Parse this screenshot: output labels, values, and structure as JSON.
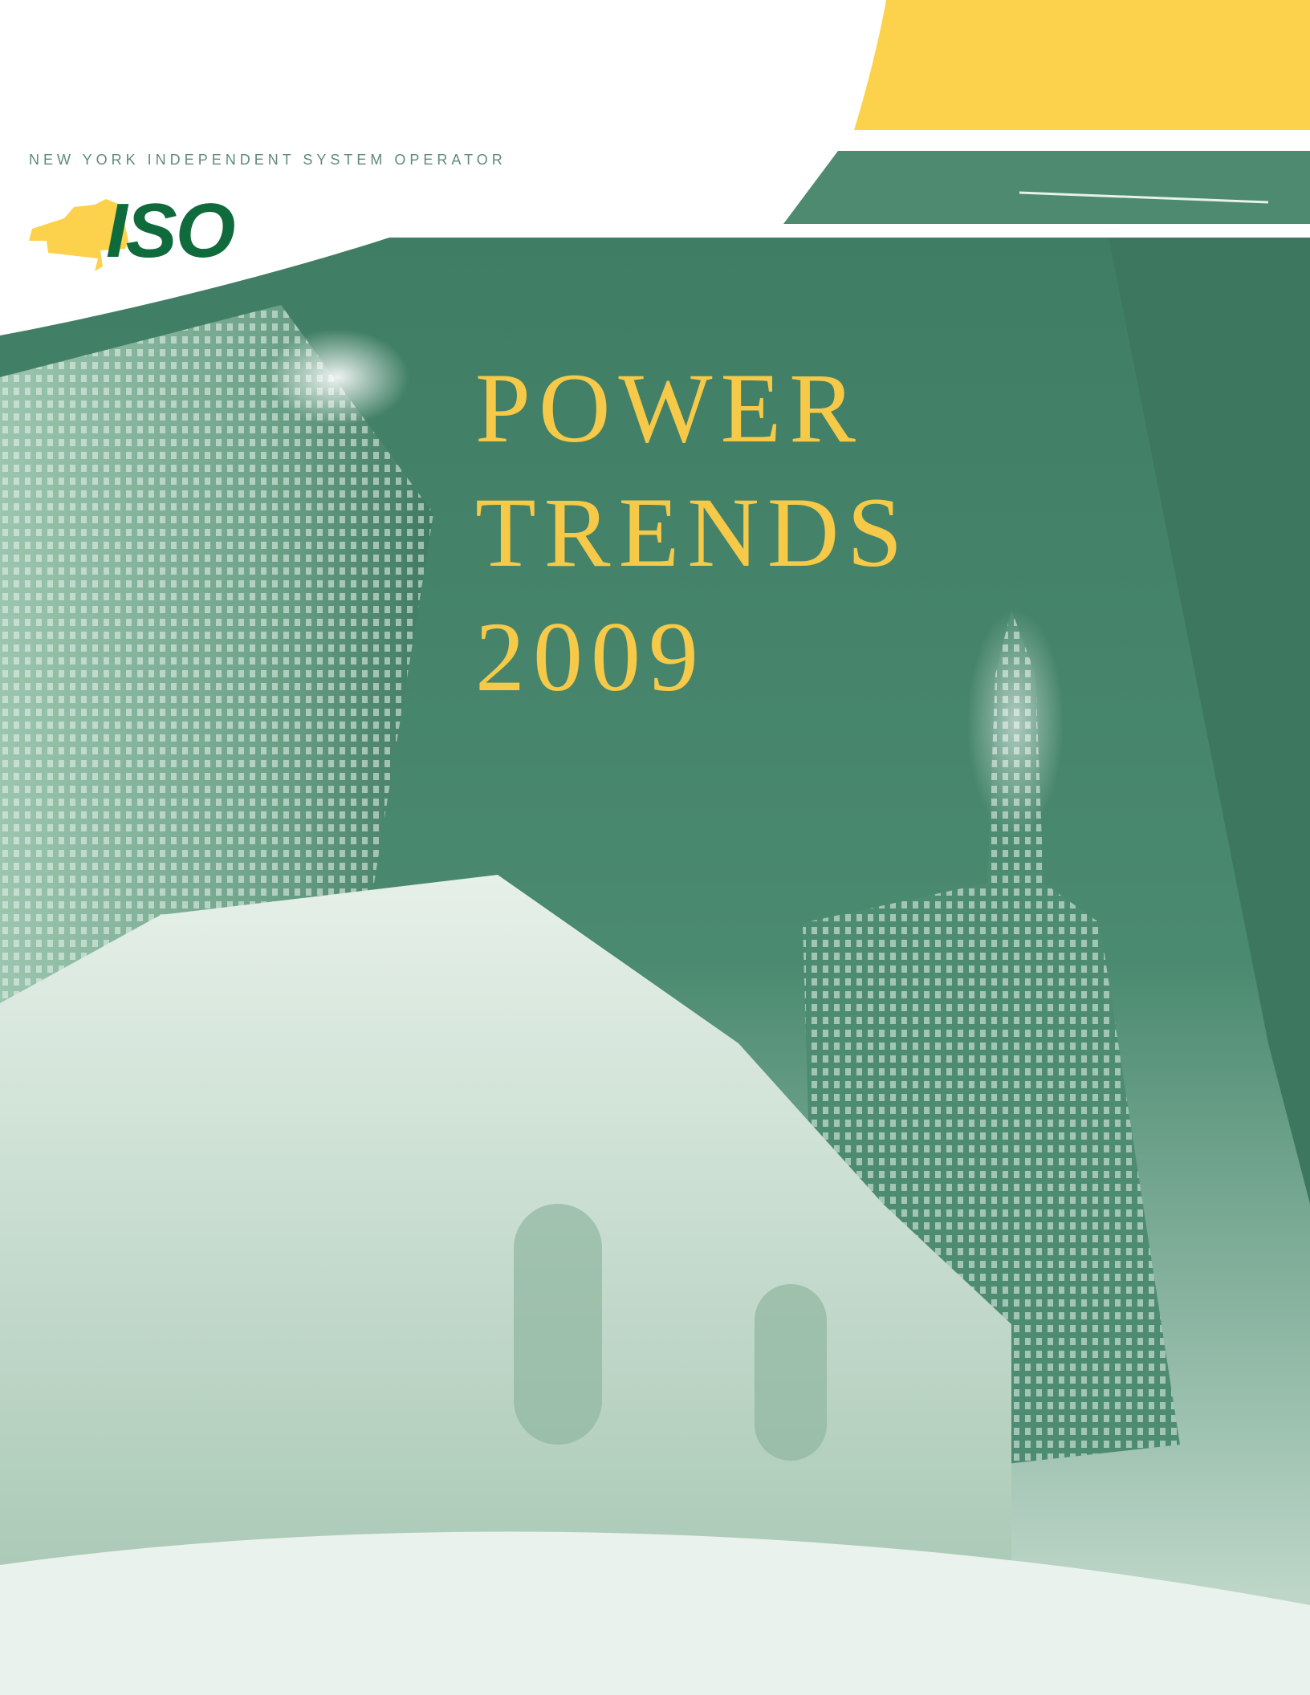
{
  "header": {
    "organization": "NEW YORK INDEPENDENT SYSTEM OPERATOR",
    "logo_text": "ISO"
  },
  "title": {
    "lines": [
      "POWER",
      "TRENDS",
      "2009"
    ]
  }
}
